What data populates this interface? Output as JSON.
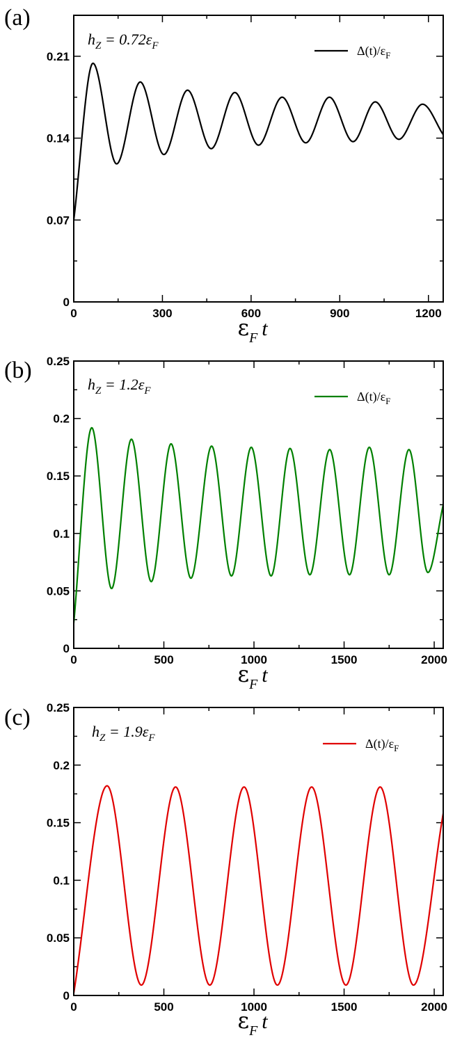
{
  "chart_data": [
    {
      "type": "line",
      "panel_label": "(a)",
      "annotation": {
        "main": "h",
        "sub": "Z",
        "rest": " = 0.72ε",
        "rest_sub": "F"
      },
      "xlabel": {
        "main": "ε",
        "sub": "F",
        "var": "t"
      },
      "xlim": [
        0,
        1250
      ],
      "ylim": [
        0,
        0.245
      ],
      "xticks": [
        0,
        300,
        600,
        900,
        1200
      ],
      "xtick_labels": [
        "0",
        "300",
        "600",
        "900",
        "1200"
      ],
      "xminor_step": 150,
      "yticks": [
        0,
        0.07,
        0.14,
        0.21
      ],
      "ytick_labels": [
        "0",
        "0.07",
        "0.14",
        "0.21"
      ],
      "yminor_step": 0.035,
      "legend": {
        "text": "Δ(t)/ε",
        "sub": "F",
        "placement": "top-right"
      },
      "color": "#000000",
      "grid": false,
      "series": [
        {
          "x": [
            0,
            65,
            145,
            225,
            305,
            385,
            465,
            545,
            625,
            705,
            785,
            865,
            945,
            1020,
            1100,
            1180,
            1250
          ],
          "y": [
            0.07,
            0.204,
            0.118,
            0.188,
            0.126,
            0.181,
            0.131,
            0.179,
            0.134,
            0.175,
            0.136,
            0.175,
            0.137,
            0.171,
            0.139,
            0.169,
            0.143
          ]
        }
      ]
    },
    {
      "type": "line",
      "panel_label": "(b)",
      "annotation": {
        "main": "h",
        "sub": "Z",
        "rest": " = 1.2ε",
        "rest_sub": "F"
      },
      "xlabel": {
        "main": "ε",
        "sub": "F",
        "var": "t"
      },
      "xlim": [
        0,
        2050
      ],
      "ylim": [
        0,
        0.25
      ],
      "xticks": [
        0,
        500,
        1000,
        1500,
        2000
      ],
      "xtick_labels": [
        "0",
        "500",
        "1000",
        "1500",
        "2000"
      ],
      "xminor_step": 250,
      "yticks": [
        0,
        0.05,
        0.1,
        0.15,
        0.2,
        0.25
      ],
      "ytick_labels": [
        "0",
        "0.05",
        "0.1",
        "0.15",
        "0.2",
        "0.25"
      ],
      "yminor_step": 0.025,
      "legend": {
        "text": "Δ(t)/ε",
        "sub": "F",
        "placement": "top-right"
      },
      "color": "#008000",
      "grid": false,
      "series": [
        {
          "x": [
            0,
            100,
            210,
            320,
            430,
            540,
            650,
            765,
            875,
            985,
            1095,
            1200,
            1310,
            1420,
            1530,
            1640,
            1750,
            1860,
            1965,
            2050
          ],
          "y": [
            0.022,
            0.192,
            0.052,
            0.182,
            0.058,
            0.178,
            0.061,
            0.176,
            0.063,
            0.175,
            0.063,
            0.174,
            0.064,
            0.173,
            0.064,
            0.175,
            0.064,
            0.173,
            0.066,
            0.125
          ]
        }
      ]
    },
    {
      "type": "line",
      "panel_label": "(c)",
      "annotation": {
        "main": "h",
        "sub": "Z",
        "rest": " = 1.9ε",
        "rest_sub": "F"
      },
      "xlabel": {
        "main": "ε",
        "sub": "F",
        "var": "t"
      },
      "xlim": [
        0,
        2050
      ],
      "ylim": [
        0,
        0.25
      ],
      "xticks": [
        0,
        500,
        1000,
        1500,
        2000
      ],
      "xtick_labels": [
        "0",
        "500",
        "1000",
        "1500",
        "2000"
      ],
      "xminor_step": 250,
      "yticks": [
        0,
        0.05,
        0.1,
        0.15,
        0.2,
        0.25
      ],
      "ytick_labels": [
        "0",
        "0.05",
        "0.1",
        "0.15",
        "0.2",
        "0.25"
      ],
      "yminor_step": 0.025,
      "legend": {
        "text": "Δ(t)/ε",
        "sub": "F",
        "placement": "top-right"
      },
      "color": "#e00000",
      "grid": false,
      "series": [
        {
          "x": [
            0,
            185,
            375,
            565,
            755,
            945,
            1130,
            1320,
            1510,
            1700,
            1885,
            2050
          ],
          "y": [
            0.002,
            0.182,
            0.009,
            0.181,
            0.009,
            0.181,
            0.009,
            0.181,
            0.009,
            0.181,
            0.009,
            0.158
          ]
        }
      ]
    }
  ]
}
